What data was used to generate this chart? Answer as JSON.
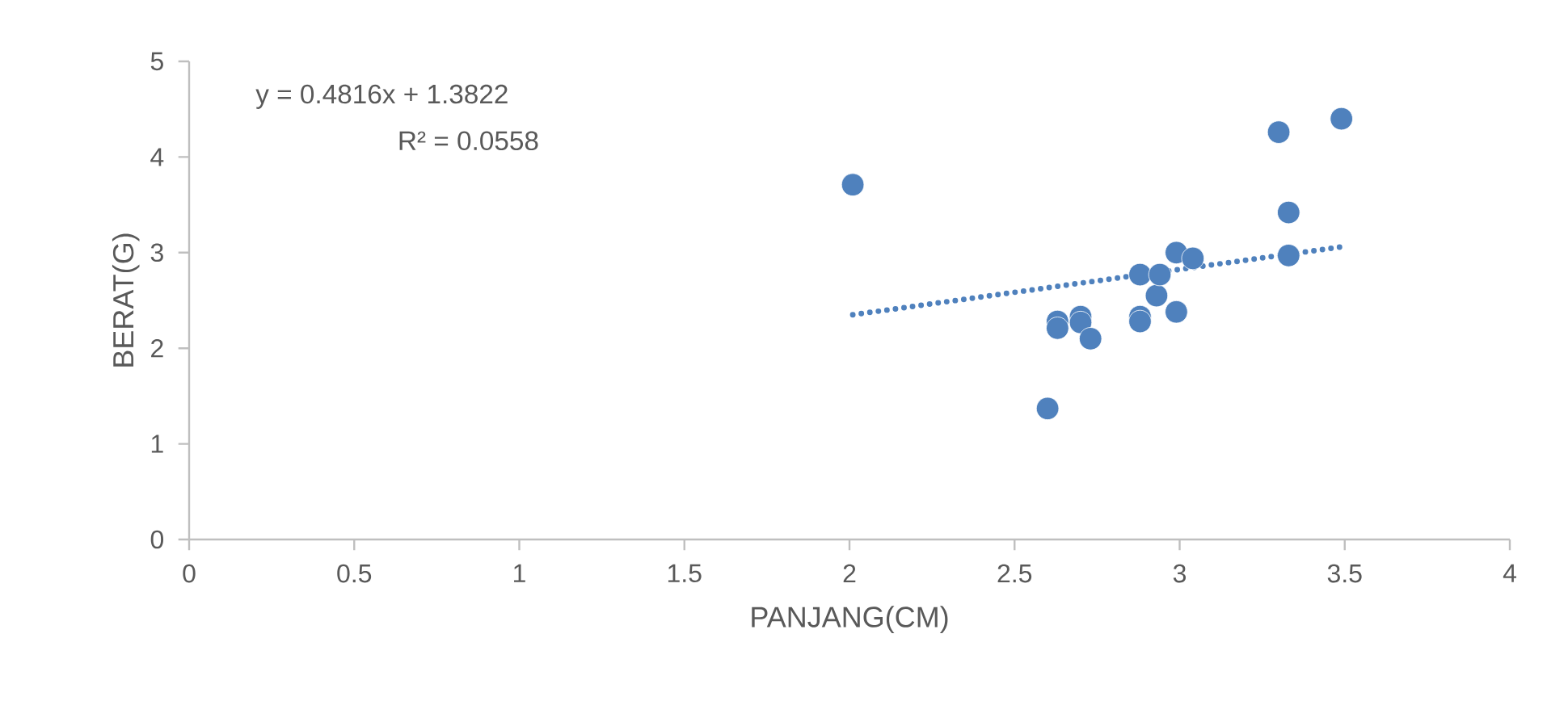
{
  "chart_data": {
    "type": "scatter",
    "xlabel": "PANJANG(CM)",
    "ylabel": "BERAT(G)",
    "xlim": [
      0,
      4
    ],
    "xticks": [
      0,
      0.5,
      1,
      1.5,
      2,
      2.5,
      3,
      3.5,
      4
    ],
    "ylim": [
      0,
      5
    ],
    "yticks": [
      0,
      1,
      2,
      3,
      4,
      5
    ],
    "grid": false,
    "annotations": [
      "y = 0.4816x + 1.3822",
      "R² = 0.0558"
    ],
    "series": [
      {
        "marker": "circle",
        "color": "#4f81bd",
        "x": [
          2.01,
          2.6,
          2.63,
          2.63,
          2.7,
          2.7,
          2.73,
          2.88,
          2.88,
          2.88,
          2.93,
          2.94,
          2.99,
          3.04,
          2.99,
          3.3,
          3.33,
          3.33,
          3.49
        ],
        "values": [
          3.71,
          1.37,
          2.28,
          2.21,
          2.33,
          2.27,
          2.1,
          2.77,
          2.33,
          2.28,
          2.55,
          2.77,
          3.0,
          2.94,
          2.38,
          4.26,
          3.42,
          2.97,
          4.4
        ]
      },
      {
        "type": "line",
        "marker": "none",
        "line_style": "dotted",
        "color": "#4f81bd",
        "x": [
          2.01,
          3.49
        ],
        "values": [
          2.35,
          3.06
        ]
      }
    ]
  }
}
